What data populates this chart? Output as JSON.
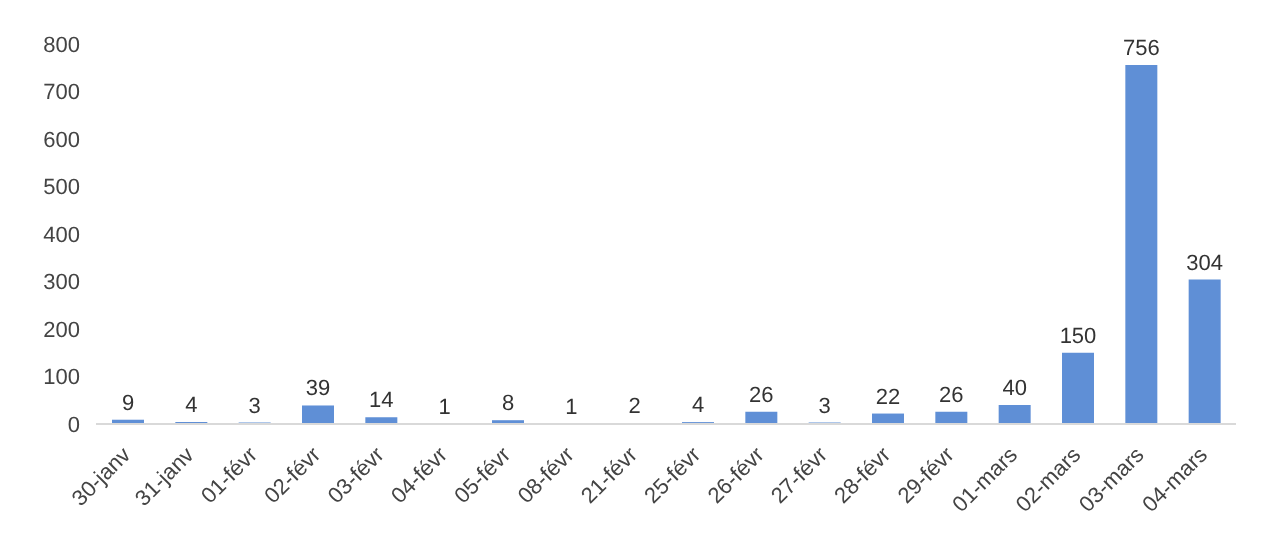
{
  "chart_data": {
    "type": "bar",
    "categories": [
      "30-janv",
      "31-janv",
      "01-févr",
      "02-févr",
      "03-févr",
      "04-févr",
      "05-févr",
      "08-févr",
      "21-févr",
      "25-févr",
      "26-févr",
      "27-févr",
      "28-févr",
      "29-févr",
      "01-mars",
      "02-mars",
      "03-mars",
      "04-mars"
    ],
    "values": [
      9,
      4,
      3,
      39,
      14,
      1,
      8,
      1,
      2,
      4,
      26,
      3,
      22,
      26,
      40,
      150,
      756,
      304
    ],
    "color": "#5f8fd6",
    "ylim": [
      0,
      800
    ],
    "yticks": [
      0,
      100,
      200,
      300,
      400,
      500,
      600,
      700,
      800
    ],
    "grid": false,
    "data_labels": true
  }
}
